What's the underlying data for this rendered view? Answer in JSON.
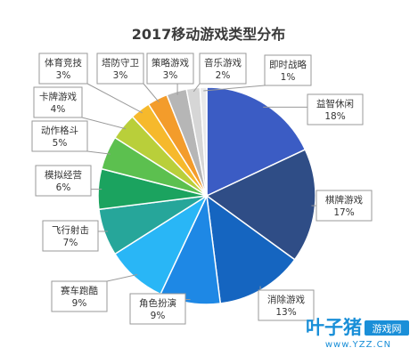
{
  "chart_data": {
    "type": "pie",
    "title": "2017移动游戏类型分布",
    "slices": [
      {
        "label": "益智休闲",
        "value": 18,
        "value_text": "18%",
        "color": "#3b5cc4"
      },
      {
        "label": "棋牌游戏",
        "value": 17,
        "value_text": "17%",
        "color": "#2f4d86"
      },
      {
        "label": "消除游戏",
        "value": 13,
        "value_text": "13%",
        "color": "#1565c0"
      },
      {
        "label": "角色扮演",
        "value": 9,
        "value_text": "9%",
        "color": "#1e88e5"
      },
      {
        "label": "赛车跑酷",
        "value": 9,
        "value_text": "9%",
        "color": "#29b6f6"
      },
      {
        "label": "飞行射击",
        "value": 7,
        "value_text": "7%",
        "color": "#26a69a"
      },
      {
        "label": "模拟经营",
        "value": 6,
        "value_text": "6%",
        "color": "#1ba35f"
      },
      {
        "label": "动作格斗",
        "value": 5,
        "value_text": "5%",
        "color": "#5cc04f"
      },
      {
        "label": "卡牌游戏",
        "value": 4,
        "value_text": "4%",
        "color": "#b9cf3a"
      },
      {
        "label": "体育竞技",
        "value": 3,
        "value_text": "3%",
        "color": "#f6b92c"
      },
      {
        "label": "塔防守卫",
        "value": 3,
        "value_text": "3%",
        "color": "#f39c2b"
      },
      {
        "label": "策略游戏",
        "value": 3,
        "value_text": "3%",
        "color": "#b6b6b6"
      },
      {
        "label": "音乐游戏",
        "value": 2,
        "value_text": "2%",
        "color": "#d6d6d6"
      },
      {
        "label": "即时战略",
        "value": 1,
        "value_text": "1%",
        "color": "#e9e9e9"
      }
    ],
    "legend": "none (callout labels)"
  },
  "watermark": {
    "brand": "叶子猪",
    "tag": "游戏网",
    "url": "www.YZZ.CN"
  }
}
